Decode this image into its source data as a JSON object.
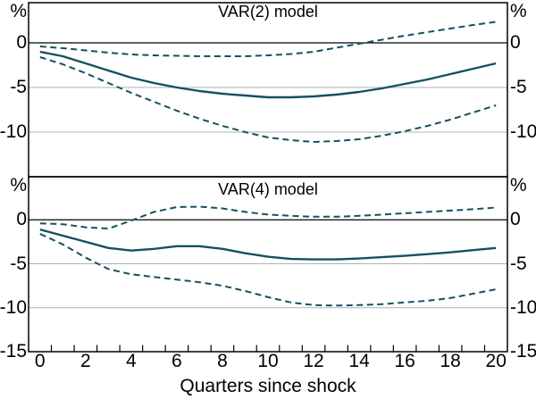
{
  "figure": {
    "unit_symbol": "%",
    "background": "#ffffff"
  },
  "colors": {
    "line": "#165060",
    "grid": "#b0b0b0",
    "axis": "#000000",
    "text": "#000000",
    "background": "#ffffff"
  },
  "x_axis": {
    "label": "Quarters since shock",
    "tick_labels": [
      "0",
      "2",
      "4",
      "6",
      "8",
      "10",
      "12",
      "14",
      "16",
      "18",
      "20"
    ],
    "tick_values": [
      0,
      2,
      4,
      6,
      8,
      10,
      12,
      14,
      16,
      18,
      20
    ],
    "minor_tick_step": 1,
    "range": [
      0,
      20
    ]
  },
  "chart_data": [
    {
      "type": "line",
      "title": "VAR(2) model",
      "ylabel": "%",
      "xlabel": "Quarters since shock",
      "ylim": [
        -15,
        4.5
      ],
      "ytick_labels": [
        "0",
        "-5",
        "-10"
      ],
      "ytick_values": [
        0,
        -5,
        -10
      ],
      "grid": "horizontal",
      "legend_position": "none",
      "x": [
        0,
        1,
        2,
        3,
        4,
        5,
        6,
        7,
        8,
        9,
        10,
        11,
        12,
        13,
        14,
        15,
        16,
        17,
        18,
        19,
        20
      ],
      "series": [
        {
          "name": "central estimate",
          "style": "solid",
          "values": [
            -1.0,
            -1.5,
            -2.3,
            -3.1,
            -3.9,
            -4.5,
            -5.0,
            -5.4,
            -5.7,
            -5.9,
            -6.1,
            -6.1,
            -6.0,
            -5.8,
            -5.5,
            -5.1,
            -4.6,
            -4.1,
            -3.5,
            -2.9,
            -2.3
          ]
        },
        {
          "name": "upper confidence band",
          "style": "dashed",
          "values": [
            -0.4,
            -0.6,
            -0.85,
            -1.1,
            -1.3,
            -1.4,
            -1.45,
            -1.5,
            -1.5,
            -1.5,
            -1.4,
            -1.25,
            -1.0,
            -0.55,
            -0.1,
            0.35,
            0.8,
            1.2,
            1.6,
            2.0,
            2.35
          ]
        },
        {
          "name": "lower confidence band",
          "style": "dashed",
          "values": [
            -1.6,
            -2.4,
            -3.4,
            -4.5,
            -5.6,
            -6.6,
            -7.6,
            -8.5,
            -9.3,
            -10.0,
            -10.6,
            -10.9,
            -11.1,
            -11.0,
            -10.8,
            -10.4,
            -9.9,
            -9.3,
            -8.6,
            -7.8,
            -7.0
          ]
        }
      ]
    },
    {
      "type": "line",
      "title": "VAR(4) model",
      "ylabel": "%",
      "xlabel": "Quarters since shock",
      "ylim": [
        -15,
        4.9
      ],
      "ytick_labels": [
        "0",
        "-5",
        "-10",
        "-15"
      ],
      "ytick_values": [
        0,
        -5,
        -10,
        -15
      ],
      "grid": "horizontal",
      "legend_position": "none",
      "x": [
        0,
        1,
        2,
        3,
        4,
        5,
        6,
        7,
        8,
        9,
        10,
        11,
        12,
        13,
        14,
        15,
        16,
        17,
        18,
        19,
        20
      ],
      "series": [
        {
          "name": "central estimate",
          "style": "solid",
          "values": [
            -1.1,
            -1.8,
            -2.5,
            -3.2,
            -3.5,
            -3.3,
            -3.0,
            -3.0,
            -3.3,
            -3.8,
            -4.2,
            -4.45,
            -4.5,
            -4.5,
            -4.4,
            -4.25,
            -4.1,
            -3.9,
            -3.7,
            -3.45,
            -3.2
          ]
        },
        {
          "name": "upper confidence band",
          "style": "dashed",
          "values": [
            -0.4,
            -0.5,
            -0.85,
            -1.0,
            -0.1,
            0.9,
            1.45,
            1.5,
            1.3,
            0.9,
            0.6,
            0.45,
            0.35,
            0.35,
            0.45,
            0.6,
            0.75,
            0.9,
            1.05,
            1.2,
            1.4
          ]
        },
        {
          "name": "lower confidence band",
          "style": "dashed",
          "values": [
            -1.6,
            -2.8,
            -4.3,
            -5.6,
            -6.2,
            -6.5,
            -6.8,
            -7.1,
            -7.5,
            -8.1,
            -8.8,
            -9.4,
            -9.7,
            -9.75,
            -9.7,
            -9.6,
            -9.4,
            -9.2,
            -8.9,
            -8.4,
            -7.9
          ]
        }
      ]
    }
  ]
}
